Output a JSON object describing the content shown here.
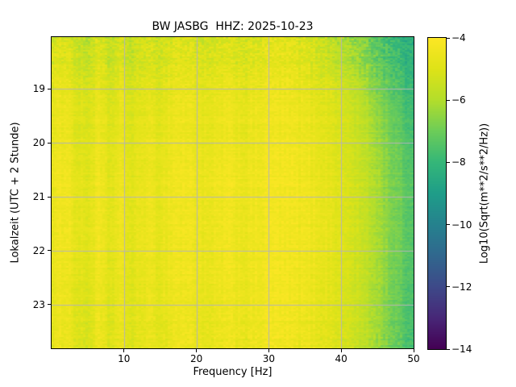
{
  "chart_data": {
    "type": "heatmap",
    "subtype": "spectrogram",
    "title": "BW JASBG  HHZ: 2025-10-23",
    "xlabel": "Frequency [Hz]",
    "ylabel": "Lokalzeit (UTC + 2 Stunde)",
    "colorbar_label": "Log10(Sqrt(m**2/s**2/Hz))",
    "cmap": "viridis",
    "clim": [
      -14,
      -4
    ],
    "xlim": [
      0,
      50
    ],
    "ylim_hours": [
      18.04,
      23.81
    ],
    "x_ticks": [
      10,
      20,
      30,
      40,
      50
    ],
    "x_tick_labels": [
      "10",
      "20",
      "30",
      "40",
      "50"
    ],
    "y_ticks": [
      19,
      20,
      21,
      22,
      23
    ],
    "y_tick_labels": [
      "19",
      "20",
      "21",
      "22",
      "23"
    ],
    "colorbar_ticks": [
      -4,
      -6,
      -8,
      -10,
      -12,
      -14
    ],
    "colorbar_tick_labels": [
      "−4",
      "−6",
      "−8",
      "−10",
      "−12",
      "−14"
    ],
    "grid_on": true,
    "gridline_color": "#b5b5b5",
    "background_color": "#ffffff",
    "viridis_stops": [
      "#440154",
      "#482878",
      "#3e4a89",
      "#31688e",
      "#26828e",
      "#1f9e89",
      "#35b779",
      "#6dcd59",
      "#b4de2c",
      "#dfe318",
      "#fde725"
    ],
    "frequencies_hz": [
      0.5,
      2,
      3.5,
      5,
      6.5,
      8,
      9.5,
      11,
      13,
      15,
      17,
      19,
      21.5,
      24,
      27,
      30,
      33,
      36,
      39,
      42,
      45,
      47.5,
      50
    ],
    "times_hours": [
      18.1,
      18.5,
      19.0,
      19.5,
      20.0,
      20.5,
      21.0,
      21.5,
      22.0,
      22.5,
      23.0,
      23.7
    ],
    "values_log10": [
      [
        -5.2,
        -4.9,
        -5.6,
        -5.7,
        -5.1,
        -5.7,
        -5.2,
        -5.7,
        -5.2,
        -5.4,
        -5.0,
        -5.0,
        -5.3,
        -5.0,
        -5.2,
        -4.8,
        -4.9,
        -5.2,
        -5.7,
        -6.4,
        -7.2,
        -7.9,
        -8.4
      ],
      [
        -5.1,
        -4.8,
        -5.5,
        -5.6,
        -5.0,
        -5.6,
        -5.1,
        -5.6,
        -5.1,
        -5.3,
        -4.9,
        -4.9,
        -5.2,
        -4.9,
        -5.1,
        -4.7,
        -4.8,
        -5.1,
        -5.6,
        -6.2,
        -7.1,
        -7.8,
        -8.3
      ],
      [
        -4.8,
        -4.5,
        -5.1,
        -5.2,
        -4.7,
        -5.2,
        -4.8,
        -5.2,
        -4.8,
        -5.0,
        -4.6,
        -4.6,
        -4.9,
        -4.6,
        -4.8,
        -4.5,
        -4.6,
        -4.8,
        -5.1,
        -5.7,
        -6.7,
        -7.4,
        -8.1
      ],
      [
        -4.7,
        -4.4,
        -5.0,
        -5.1,
        -4.6,
        -5.1,
        -4.7,
        -5.1,
        -4.7,
        -4.9,
        -4.5,
        -4.5,
        -4.8,
        -4.5,
        -4.7,
        -4.4,
        -4.5,
        -4.7,
        -5.0,
        -5.5,
        -6.4,
        -7.2,
        -7.9
      ],
      [
        -4.7,
        -4.4,
        -5.0,
        -5.0,
        -4.5,
        -5.0,
        -4.6,
        -5.0,
        -4.6,
        -4.8,
        -4.5,
        -4.5,
        -4.8,
        -4.5,
        -4.7,
        -4.4,
        -4.4,
        -4.6,
        -4.9,
        -5.4,
        -6.3,
        -7.0,
        -7.7
      ],
      [
        -4.6,
        -4.3,
        -4.9,
        -5.0,
        -4.5,
        -5.0,
        -4.6,
        -5.0,
        -4.6,
        -4.8,
        -4.4,
        -4.4,
        -4.7,
        -4.4,
        -4.6,
        -4.3,
        -4.4,
        -4.6,
        -4.9,
        -5.4,
        -6.2,
        -7.0,
        -7.6
      ],
      [
        -4.6,
        -4.3,
        -4.8,
        -4.9,
        -4.4,
        -4.9,
        -4.5,
        -4.9,
        -4.5,
        -4.7,
        -4.4,
        -4.4,
        -4.7,
        -4.4,
        -4.6,
        -4.3,
        -4.4,
        -4.5,
        -4.8,
        -5.3,
        -6.1,
        -6.9,
        -7.5
      ],
      [
        -4.6,
        -4.3,
        -4.8,
        -4.9,
        -4.4,
        -4.9,
        -4.5,
        -4.9,
        -4.5,
        -4.7,
        -4.4,
        -4.4,
        -4.7,
        -4.4,
        -4.6,
        -4.3,
        -4.4,
        -4.5,
        -4.8,
        -5.3,
        -6.1,
        -6.9,
        -7.5
      ],
      [
        -4.6,
        -4.3,
        -4.8,
        -4.9,
        -4.4,
        -4.9,
        -4.5,
        -4.9,
        -4.5,
        -4.7,
        -4.4,
        -4.4,
        -4.7,
        -4.4,
        -4.6,
        -4.3,
        -4.4,
        -4.5,
        -4.8,
        -5.3,
        -6.1,
        -6.9,
        -7.5
      ],
      [
        -4.7,
        -4.4,
        -4.9,
        -5.0,
        -4.5,
        -5.0,
        -4.6,
        -5.0,
        -4.6,
        -4.8,
        -4.4,
        -4.4,
        -4.7,
        -4.4,
        -4.6,
        -4.3,
        -4.4,
        -4.6,
        -4.9,
        -5.4,
        -6.2,
        -7.0,
        -7.6
      ],
      [
        -4.7,
        -4.4,
        -5.0,
        -5.1,
        -4.5,
        -5.0,
        -4.6,
        -5.0,
        -4.6,
        -4.8,
        -4.5,
        -4.5,
        -4.8,
        -4.5,
        -4.6,
        -4.3,
        -4.4,
        -4.6,
        -4.9,
        -5.4,
        -6.2,
        -7.0,
        -7.7
      ],
      [
        -4.8,
        -4.5,
        -5.1,
        -5.2,
        -4.6,
        -5.1,
        -4.7,
        -5.1,
        -4.7,
        -4.9,
        -4.5,
        -4.5,
        -4.8,
        -4.5,
        -4.7,
        -4.4,
        -4.5,
        -4.7,
        -5.0,
        -5.5,
        -6.3,
        -7.1,
        -7.8
      ]
    ]
  }
}
